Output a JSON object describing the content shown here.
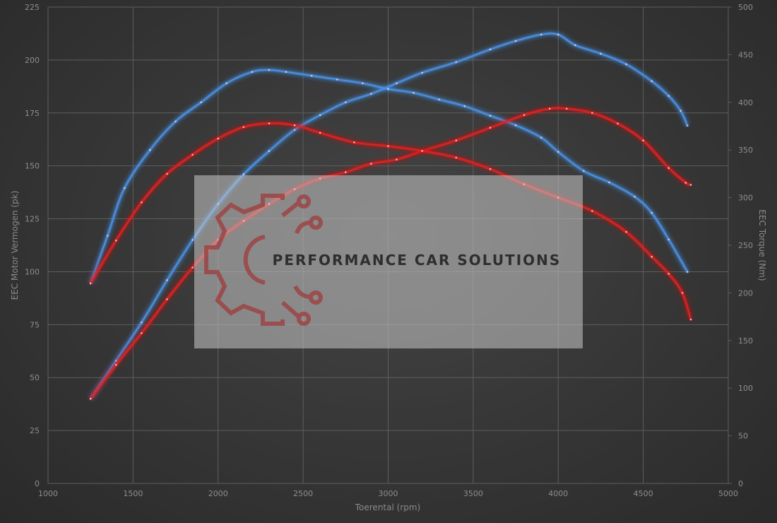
{
  "chart_data": {
    "type": "line",
    "xlabel": "Toerental (rpm)",
    "ylabel_left": "EEC Motor Vermogen (pk)",
    "ylabel_right": "EEC Torque (Nm)",
    "xlim": [
      1000,
      5000
    ],
    "xticks": [
      1000,
      1500,
      2000,
      2500,
      3000,
      3500,
      4000,
      4500,
      5000
    ],
    "ylim_left": [
      0,
      225
    ],
    "yticks_left": [
      0,
      25,
      50,
      75,
      100,
      125,
      150,
      175,
      200,
      225
    ],
    "ylim_right": [
      0,
      500
    ],
    "yticks_right": [
      0,
      50,
      100,
      150,
      200,
      250,
      300,
      350,
      400,
      450,
      500
    ],
    "grid": true,
    "colors": {
      "tuned": "#4a90e2",
      "stock": "#e02020",
      "background": "#3a3a3a"
    },
    "series": [
      {
        "axis": "left",
        "color": "#4a90e2",
        "x": [
          1250,
          1400,
          1550,
          1700,
          1850,
          2000,
          2150,
          2300,
          2450,
          2600,
          2750,
          2900,
          3050,
          3200,
          3400,
          3600,
          3750,
          3900,
          4000,
          4100,
          4250,
          4400,
          4550,
          4650,
          4720,
          4760
        ],
        "y": [
          40,
          58,
          76,
          96,
          115,
          132,
          146,
          157,
          167,
          174,
          180,
          184,
          189,
          194,
          199,
          205,
          209,
          212,
          212,
          207,
          203,
          198,
          190,
          183,
          176,
          169
        ]
      },
      {
        "axis": "right",
        "color": "#4a90e2",
        "x": [
          1250,
          1350,
          1450,
          1600,
          1750,
          1900,
          2050,
          2200,
          2300,
          2400,
          2550,
          2700,
          2850,
          3000,
          3150,
          3300,
          3450,
          3600,
          3750,
          3900,
          4000,
          4150,
          4300,
          4450,
          4550,
          4650,
          4760
        ],
        "y": [
          210,
          260,
          310,
          350,
          380,
          400,
          420,
          432,
          434,
          432,
          428,
          424,
          420,
          414,
          410,
          403,
          396,
          386,
          376,
          363,
          348,
          328,
          316,
          301,
          284,
          256,
          222
        ]
      },
      {
        "axis": "left",
        "color": "#e02020",
        "x": [
          1250,
          1400,
          1550,
          1700,
          1850,
          2000,
          2150,
          2300,
          2450,
          2600,
          2750,
          2900,
          3050,
          3200,
          3400,
          3600,
          3800,
          3950,
          4050,
          4200,
          4350,
          4500,
          4650,
          4750,
          4780
        ],
        "y": [
          40,
          56,
          71,
          87,
          102,
          115,
          124,
          132,
          139,
          144,
          147,
          151,
          153,
          157,
          162,
          168,
          174,
          177,
          177,
          175,
          170,
          162,
          149,
          142,
          141
        ]
      },
      {
        "axis": "right",
        "color": "#e02020",
        "x": [
          1250,
          1400,
          1550,
          1700,
          1850,
          2000,
          2150,
          2300,
          2450,
          2600,
          2800,
          3000,
          3200,
          3400,
          3600,
          3800,
          4000,
          4200,
          4400,
          4550,
          4650,
          4730,
          4780
        ],
        "y": [
          210,
          255,
          295,
          325,
          345,
          362,
          374,
          378,
          376,
          368,
          358,
          354,
          349,
          342,
          330,
          314,
          300,
          286,
          264,
          238,
          220,
          200,
          172
        ]
      }
    ]
  },
  "watermark": {
    "text": "PERFORMANCE CAR SOLUTIONS"
  }
}
